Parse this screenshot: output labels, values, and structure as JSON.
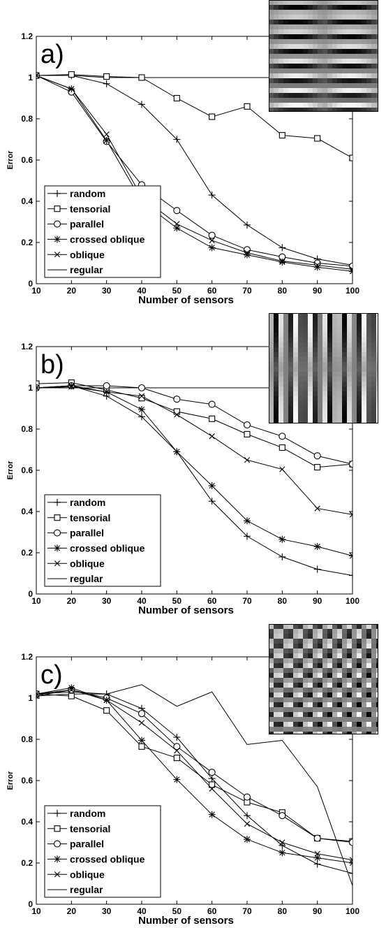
{
  "chart_data": [
    {
      "type": "line",
      "panel_label": "a)",
      "xlabel": "Number of sensors",
      "ylabel": "Error",
      "xlim": [
        10,
        100
      ],
      "ylim": [
        0,
        1.2
      ],
      "x_ticks": [
        "10",
        "20",
        "30",
        "40",
        "50",
        "60",
        "70",
        "80",
        "90",
        "100"
      ],
      "y_ticks": [
        "0",
        "0.2",
        "0.4",
        "0.6",
        "0.8",
        "1",
        "1.2"
      ],
      "legend_position": "lower-left",
      "grid": false,
      "inset_pattern": "horizontal-bands",
      "x": [
        10,
        20,
        30,
        40,
        50,
        60,
        70,
        80,
        90,
        100
      ],
      "series": [
        {
          "name": "random",
          "marker": "plus",
          "values": [
            1.01,
            1.01,
            0.97,
            0.87,
            0.7,
            0.43,
            0.285,
            0.175,
            0.12,
            0.09
          ]
        },
        {
          "name": "tensorial",
          "marker": "square",
          "values": [
            1.01,
            1.015,
            1.005,
            1.0,
            0.9,
            0.81,
            0.86,
            0.72,
            0.705,
            0.61
          ]
        },
        {
          "name": "parallel",
          "marker": "circle",
          "values": [
            1.01,
            0.93,
            0.69,
            0.48,
            0.355,
            0.235,
            0.165,
            0.13,
            0.1,
            0.085
          ]
        },
        {
          "name": "crossed oblique",
          "marker": "star",
          "values": [
            1.01,
            0.945,
            0.695,
            0.4,
            0.27,
            0.175,
            0.14,
            0.105,
            0.08,
            0.06
          ]
        },
        {
          "name": "oblique",
          "marker": "x",
          "values": [
            1.01,
            0.945,
            0.725,
            0.42,
            0.29,
            0.21,
            0.15,
            0.11,
            0.09,
            0.07
          ]
        },
        {
          "name": "regular",
          "marker": "none",
          "values": [
            1.01,
            1.01,
            1.0,
            1.0,
            1.0,
            1.0,
            1.0,
            1.0,
            1.0,
            1.0
          ]
        }
      ]
    },
    {
      "type": "line",
      "panel_label": "b)",
      "xlabel": "Number of sensors",
      "ylabel": "Error",
      "xlim": [
        10,
        100
      ],
      "ylim": [
        0,
        1.2
      ],
      "x_ticks": [
        "10",
        "20",
        "30",
        "40",
        "50",
        "60",
        "70",
        "80",
        "90",
        "100"
      ],
      "y_ticks": [
        "0",
        "0.2",
        "0.4",
        "0.6",
        "0.8",
        "1",
        "1.2"
      ],
      "legend_position": "lower-left",
      "grid": false,
      "inset_pattern": "vertical-stripes",
      "x": [
        10,
        20,
        30,
        40,
        50,
        60,
        70,
        80,
        90,
        100
      ],
      "series": [
        {
          "name": "random",
          "marker": "plus",
          "values": [
            1.0,
            1.01,
            0.96,
            0.86,
            0.69,
            0.45,
            0.28,
            0.18,
            0.12,
            0.09
          ]
        },
        {
          "name": "tensorial",
          "marker": "square",
          "values": [
            1.02,
            1.025,
            0.99,
            0.95,
            0.885,
            0.85,
            0.775,
            0.71,
            0.615,
            0.63
          ]
        },
        {
          "name": "parallel",
          "marker": "circle",
          "values": [
            1.0,
            1.01,
            1.01,
            1.0,
            0.945,
            0.92,
            0.82,
            0.765,
            0.67,
            0.63
          ]
        },
        {
          "name": "crossed oblique",
          "marker": "star",
          "values": [
            1.0,
            1.01,
            0.98,
            0.895,
            0.69,
            0.525,
            0.355,
            0.265,
            0.23,
            0.185
          ]
        },
        {
          "name": "oblique",
          "marker": "x",
          "values": [
            1.0,
            1.005,
            0.98,
            0.96,
            0.87,
            0.765,
            0.65,
            0.605,
            0.415,
            0.385
          ]
        },
        {
          "name": "regular",
          "marker": "none",
          "values": [
            1.0,
            1.0,
            1.0,
            1.0,
            1.0,
            1.0,
            1.0,
            1.0,
            1.0,
            1.0
          ]
        }
      ]
    },
    {
      "type": "line",
      "panel_label": "c)",
      "xlabel": "Number of sensors",
      "ylabel": "Error",
      "xlim": [
        10,
        100
      ],
      "ylim": [
        0,
        1.2
      ],
      "x_ticks": [
        "10",
        "20",
        "30",
        "40",
        "50",
        "60",
        "70",
        "80",
        "90",
        "100"
      ],
      "y_ticks": [
        "0",
        "0.2",
        "0.4",
        "0.6",
        "0.8",
        "1",
        "1.2"
      ],
      "legend_position": "lower-left",
      "grid": false,
      "inset_pattern": "checkerboard",
      "x": [
        10,
        20,
        30,
        40,
        50,
        60,
        70,
        80,
        90,
        100
      ],
      "series": [
        {
          "name": "random",
          "marker": "plus",
          "values": [
            1.02,
            1.03,
            1.02,
            0.95,
            0.81,
            0.61,
            0.43,
            0.285,
            0.195,
            0.15
          ]
        },
        {
          "name": "tensorial",
          "marker": "square",
          "values": [
            1.02,
            1.01,
            0.94,
            0.765,
            0.71,
            0.58,
            0.495,
            0.445,
            0.32,
            0.305
          ]
        },
        {
          "name": "parallel",
          "marker": "circle",
          "values": [
            1.02,
            1.04,
            1.0,
            0.925,
            0.765,
            0.64,
            0.52,
            0.43,
            0.32,
            0.3
          ]
        },
        {
          "name": "crossed oblique",
          "marker": "star",
          "values": [
            1.02,
            1.05,
            0.99,
            0.795,
            0.605,
            0.435,
            0.315,
            0.25,
            0.225,
            0.2
          ]
        },
        {
          "name": "oblique",
          "marker": "x",
          "values": [
            1.01,
            1.04,
            0.99,
            0.88,
            0.745,
            0.56,
            0.39,
            0.3,
            0.245,
            0.215
          ]
        },
        {
          "name": "regular",
          "marker": "none",
          "values": [
            1.01,
            1.02,
            1.02,
            1.065,
            0.96,
            1.03,
            0.775,
            0.795,
            0.57,
            0.09
          ]
        }
      ]
    }
  ]
}
